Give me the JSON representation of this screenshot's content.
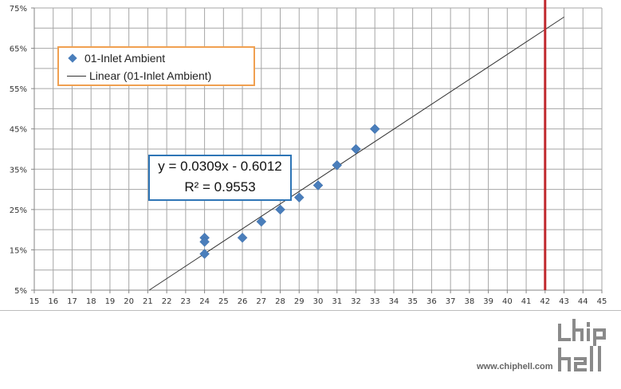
{
  "chart_data": {
    "type": "scatter",
    "title": "",
    "xlabel": "",
    "ylabel": "",
    "xlim": [
      15,
      45
    ],
    "ylim": [
      0.05,
      0.75
    ],
    "x_ticks": [
      "15",
      "16",
      "17",
      "18",
      "19",
      "20",
      "21",
      "22",
      "23",
      "24",
      "25",
      "26",
      "27",
      "28",
      "29",
      "30",
      "31",
      "32",
      "33",
      "34",
      "35",
      "36",
      "37",
      "38",
      "39",
      "40",
      "41",
      "42",
      "43",
      "44",
      "45"
    ],
    "y_ticks": [
      "5%",
      "15%",
      "25%",
      "35%",
      "45%",
      "55%",
      "65%",
      "75%"
    ],
    "y_tick_values": [
      0.05,
      0.15,
      0.25,
      0.35,
      0.45,
      0.55,
      0.65,
      0.75
    ],
    "grid": true,
    "series": [
      {
        "name": "01-Inlet Ambient",
        "kind": "scatter",
        "color": "#4a7ebb",
        "x": [
          24,
          24,
          24,
          26,
          27,
          28,
          29,
          30,
          31,
          32,
          33
        ],
        "y": [
          0.18,
          0.17,
          0.14,
          0.18,
          0.22,
          0.25,
          0.28,
          0.31,
          0.36,
          0.4,
          0.45
        ]
      },
      {
        "name": "Linear (01-Inlet Ambient)",
        "kind": "trendline",
        "color": "#333333",
        "slope": 0.0309,
        "intercept": -0.6012,
        "x_range": [
          21,
          43
        ]
      }
    ],
    "reference_line": {
      "x": 42,
      "color": "#c0282d"
    },
    "legend": {
      "position": "top-left",
      "border_color": "#f0a050",
      "entries": [
        "01-Inlet Ambient",
        "Linear (01-Inlet Ambient)"
      ]
    },
    "equation": {
      "line1": "y = 0.0309x - 0.6012",
      "line2": "R² = 0.9553",
      "border_color": "#2e75b6"
    }
  },
  "watermark": {
    "url": "www.chiphell.com",
    "logo_text": "chip hell"
  }
}
